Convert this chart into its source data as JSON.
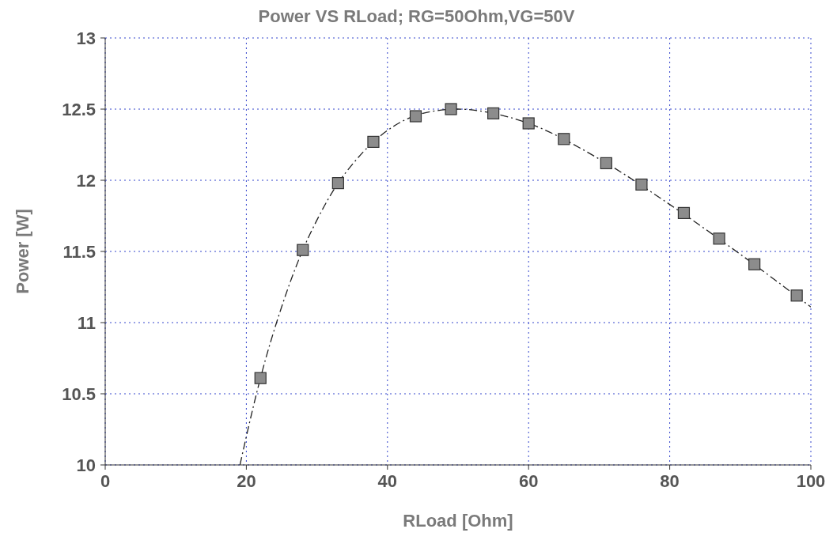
{
  "chart_data": {
    "type": "scatter",
    "title": "Power VS RLoad; RG=50Ohm,VG=50V",
    "xlabel": "RLoad [Ohm]",
    "ylabel": "Power [W]",
    "xlim": [
      0,
      100
    ],
    "xticks": [
      0,
      20,
      40,
      60,
      80,
      100
    ],
    "ylim": [
      10,
      13
    ],
    "yticks": [
      10,
      10.5,
      11,
      11.5,
      12,
      12.5,
      13
    ],
    "grid": true,
    "series": [
      {
        "type": "line",
        "color": "#222222",
        "line_style": "dashed",
        "marker": "none",
        "x": [
          19.1,
          20,
          22,
          25,
          28,
          30,
          33,
          35,
          38,
          40,
          45,
          50,
          55,
          60,
          70,
          80,
          90,
          100
        ],
        "values": [
          10.0,
          10.2,
          10.61,
          11.11,
          11.51,
          11.72,
          11.98,
          12.11,
          12.27,
          12.35,
          12.47,
          12.5,
          12.47,
          12.4,
          12.15,
          11.83,
          11.48,
          11.11
        ]
      },
      {
        "color": "#8c8c8c",
        "marker": "square",
        "x": [
          22,
          28,
          33,
          38,
          44,
          49,
          55,
          60,
          65,
          71,
          76,
          82,
          87,
          92,
          98
        ],
        "values": [
          10.61,
          11.51,
          11.98,
          12.27,
          12.45,
          12.5,
          12.47,
          12.4,
          12.29,
          12.12,
          11.97,
          11.77,
          11.59,
          11.41,
          11.19
        ]
      }
    ]
  }
}
